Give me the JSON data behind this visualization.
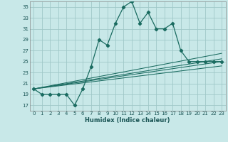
{
  "xlabel": "Humidex (Indice chaleur)",
  "background_color": "#c8e8e8",
  "grid_color": "#a0c8c8",
  "line_color": "#1a6b60",
  "xlim": [
    -0.5,
    23.5
  ],
  "ylim": [
    16,
    36
  ],
  "yticks": [
    17,
    19,
    21,
    23,
    25,
    27,
    29,
    31,
    33,
    35
  ],
  "xticks": [
    0,
    1,
    2,
    3,
    4,
    5,
    6,
    7,
    8,
    9,
    10,
    11,
    12,
    13,
    14,
    15,
    16,
    17,
    18,
    19,
    20,
    21,
    22,
    23
  ],
  "main_series_x": [
    0,
    1,
    2,
    3,
    4,
    5,
    6,
    7,
    8,
    9,
    10,
    11,
    12,
    13,
    14,
    15,
    16,
    17,
    18,
    19,
    20,
    21,
    22,
    23
  ],
  "main_series_y": [
    20,
    19,
    19,
    19,
    19,
    17,
    20,
    24,
    29,
    28,
    32,
    35,
    36,
    32,
    34,
    31,
    31,
    32,
    27,
    25,
    25,
    25,
    25,
    25
  ],
  "linear_series": [
    {
      "x": [
        0,
        23
      ],
      "y": [
        20,
        26.5
      ]
    },
    {
      "x": [
        0,
        23
      ],
      "y": [
        20,
        25.5
      ]
    },
    {
      "x": [
        0,
        23
      ],
      "y": [
        20,
        25.0
      ]
    },
    {
      "x": [
        0,
        23
      ],
      "y": [
        20,
        24.2
      ]
    }
  ]
}
